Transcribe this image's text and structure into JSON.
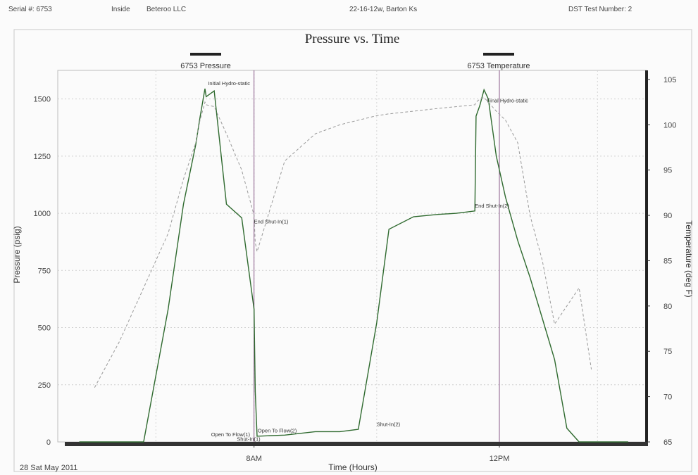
{
  "header": {
    "serial": "Serial #: 6753",
    "location": "Inside",
    "company": "Beteroo LLC",
    "well": "22-16-12w, Barton Ks",
    "dst": "DST Test Number: 2"
  },
  "chart_data": {
    "type": "line",
    "title": "Pressure vs. Time",
    "xlabel": "Time (Hours)",
    "ylabel": "Pressure (psig)",
    "y2label": "Temperature (deg F)",
    "date_label": "28 Sat May 2011",
    "x_ticks": [
      "8AM",
      "12PM"
    ],
    "x_range_hours": [
      4.8,
      14.4
    ],
    "ylim": [
      0,
      1625
    ],
    "y_ticks": [
      "0",
      "250",
      "500",
      "750",
      "1000",
      "1250",
      "1500"
    ],
    "y_tick_values": [
      0,
      250,
      500,
      750,
      1000,
      1250,
      1500
    ],
    "y2lim": [
      65,
      106
    ],
    "y2_ticks": [
      "65",
      "70",
      "75",
      "80",
      "85",
      "90",
      "95",
      "100",
      "105"
    ],
    "y2_tick_values": [
      65,
      70,
      75,
      80,
      85,
      90,
      95,
      100,
      105
    ],
    "grid": true,
    "legend_position": "top",
    "series": [
      {
        "name": "6753 Pressure",
        "axis": "left",
        "color": "#2f6a2f",
        "x": [
          5.15,
          5.8,
          6.2,
          6.6,
          6.85,
          7.05,
          7.12,
          7.2,
          7.22,
          7.35,
          7.55,
          7.8,
          8.0,
          8.02,
          8.05,
          8.5,
          9.0,
          9.4,
          9.7,
          10.0,
          10.2,
          10.6,
          11.0,
          11.3,
          11.6,
          11.62,
          11.68,
          11.75,
          11.82,
          11.95,
          12.1,
          12.3,
          12.5,
          12.7,
          12.9,
          13.1,
          13.3,
          14.1
        ],
        "y": [
          0,
          0,
          0,
          580,
          1040,
          1300,
          1420,
          1545,
          1510,
          1535,
          1040,
          980,
          580,
          220,
          25,
          30,
          45,
          45,
          55,
          520,
          930,
          985,
          995,
          1000,
          1010,
          1425,
          1470,
          1540,
          1500,
          1250,
          1070,
          880,
          720,
          540,
          360,
          60,
          0,
          0
        ]
      },
      {
        "name": "6753 Temperature",
        "axis": "right",
        "color": "#999999",
        "x": [
          5.4,
          5.8,
          6.2,
          6.6,
          6.85,
          7.05,
          7.12,
          7.2,
          7.22,
          7.35,
          7.55,
          7.8,
          8.0,
          8.02,
          8.05,
          8.5,
          9.0,
          9.4,
          9.7,
          10.0,
          10.2,
          10.6,
          11.0,
          11.3,
          11.6,
          11.62,
          11.68,
          11.75,
          11.82,
          11.95,
          12.1,
          12.3,
          12.5,
          12.7,
          12.9,
          13.1,
          13.3,
          13.5
        ],
        "y": [
          71,
          76,
          82,
          88,
          94,
          98,
          100.5,
          102.5,
          102.2,
          102,
          99,
          95,
          90,
          87,
          86,
          96,
          99,
          100,
          100.5,
          101,
          101.2,
          101.5,
          101.8,
          102,
          102.2,
          102.5,
          102.8,
          103,
          102.5,
          101.5,
          100.5,
          98,
          90,
          85,
          78,
          80,
          82,
          73
        ]
      }
    ],
    "annotations": [
      {
        "text": "Initial Hydro-static",
        "x": 7.25,
        "y": 1560
      },
      {
        "text": "Open To Flow(1)",
        "x": 7.3,
        "y": 25
      },
      {
        "text": "Shut-In(1)",
        "x": 7.72,
        "y": 5
      },
      {
        "text": "End Shut-In(1)",
        "x": 8.0,
        "y": 955
      },
      {
        "text": "Open To Flow(2)",
        "x": 8.06,
        "y": 42
      },
      {
        "text": "Shut-In(2)",
        "x": 10.0,
        "y": 70
      },
      {
        "text": "End Shut-In(2)",
        "x": 11.6,
        "y": 1025
      },
      {
        "text": "Final Hydro-static",
        "x": 11.8,
        "y": 1485
      }
    ]
  }
}
